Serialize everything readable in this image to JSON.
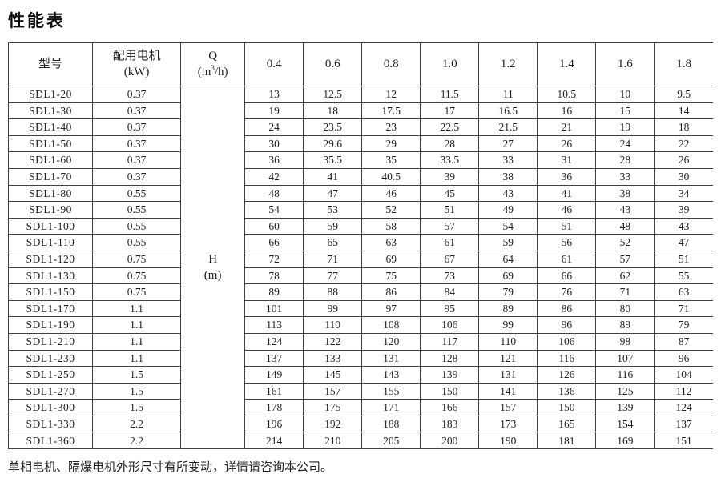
{
  "title": "性能表",
  "table": {
    "col_model": "型号",
    "col_motor_line1": "配用电机",
    "col_motor_line2": "(kW)",
    "col_q_line1": "Q",
    "q_unit": {
      "pre": "(m",
      "sup": "3",
      "post": "/h)"
    },
    "h_label_line1": "H",
    "h_label_line2": "(m)",
    "flow_headers": [
      "0.4",
      "0.6",
      "0.8",
      "1.0",
      "1.2",
      "1.4",
      "1.6",
      "1.8"
    ],
    "rows": [
      {
        "model": "SDL1-20",
        "power": "0.37",
        "h": [
          "13",
          "12.5",
          "12",
          "11.5",
          "11",
          "10.5",
          "10",
          "9.5"
        ]
      },
      {
        "model": "SDL1-30",
        "power": "0.37",
        "h": [
          "19",
          "18",
          "17.5",
          "17",
          "16.5",
          "16",
          "15",
          "14"
        ]
      },
      {
        "model": "SDL1-40",
        "power": "0.37",
        "h": [
          "24",
          "23.5",
          "23",
          "22.5",
          "21.5",
          "21",
          "19",
          "18"
        ]
      },
      {
        "model": "SDL1-50",
        "power": "0.37",
        "h": [
          "30",
          "29.6",
          "29",
          "28",
          "27",
          "26",
          "24",
          "22"
        ]
      },
      {
        "model": "SDL1-60",
        "power": "0.37",
        "h": [
          "36",
          "35.5",
          "35",
          "33.5",
          "33",
          "31",
          "28",
          "26"
        ]
      },
      {
        "model": "SDL1-70",
        "power": "0.37",
        "h": [
          "42",
          "41",
          "40.5",
          "39",
          "38",
          "36",
          "33",
          "30"
        ]
      },
      {
        "model": "SDL1-80",
        "power": "0.55",
        "h": [
          "48",
          "47",
          "46",
          "45",
          "43",
          "41",
          "38",
          "34"
        ]
      },
      {
        "model": "SDL1-90",
        "power": "0.55",
        "h": [
          "54",
          "53",
          "52",
          "51",
          "49",
          "46",
          "43",
          "39"
        ]
      },
      {
        "model": "SDL1-100",
        "power": "0.55",
        "h": [
          "60",
          "59",
          "58",
          "57",
          "54",
          "51",
          "48",
          "43"
        ]
      },
      {
        "model": "SDL1-110",
        "power": "0.55",
        "h": [
          "66",
          "65",
          "63",
          "61",
          "59",
          "56",
          "52",
          "47"
        ]
      },
      {
        "model": "SDL1-120",
        "power": "0.75",
        "h": [
          "72",
          "71",
          "69",
          "67",
          "64",
          "61",
          "57",
          "51"
        ]
      },
      {
        "model": "SDL1-130",
        "power": "0.75",
        "h": [
          "78",
          "77",
          "75",
          "73",
          "69",
          "66",
          "62",
          "55"
        ]
      },
      {
        "model": "SDL1-150",
        "power": "0.75",
        "h": [
          "89",
          "88",
          "86",
          "84",
          "79",
          "76",
          "71",
          "63"
        ]
      },
      {
        "model": "SDL1-170",
        "power": "1.1",
        "h": [
          "101",
          "99",
          "97",
          "95",
          "89",
          "86",
          "80",
          "71"
        ]
      },
      {
        "model": "SDL1-190",
        "power": "1.1",
        "h": [
          "113",
          "110",
          "108",
          "106",
          "99",
          "96",
          "89",
          "79"
        ]
      },
      {
        "model": "SDL1-210",
        "power": "1.1",
        "h": [
          "124",
          "122",
          "120",
          "117",
          "110",
          "106",
          "98",
          "87"
        ]
      },
      {
        "model": "SDL1-230",
        "power": "1.1",
        "h": [
          "137",
          "133",
          "131",
          "128",
          "121",
          "116",
          "107",
          "96"
        ]
      },
      {
        "model": "SDL1-250",
        "power": "1.5",
        "h": [
          "149",
          "145",
          "143",
          "139",
          "131",
          "126",
          "116",
          "104"
        ]
      },
      {
        "model": "SDL1-270",
        "power": "1.5",
        "h": [
          "161",
          "157",
          "155",
          "150",
          "141",
          "136",
          "125",
          "112"
        ]
      },
      {
        "model": "SDL1-300",
        "power": "1.5",
        "h": [
          "178",
          "175",
          "171",
          "166",
          "157",
          "150",
          "139",
          "124"
        ]
      },
      {
        "model": "SDL1-330",
        "power": "2.2",
        "h": [
          "196",
          "192",
          "188",
          "183",
          "173",
          "165",
          "154",
          "137"
        ]
      },
      {
        "model": "SDL1-360",
        "power": "2.2",
        "h": [
          "214",
          "210",
          "205",
          "200",
          "190",
          "181",
          "169",
          "151"
        ]
      }
    ]
  },
  "footer_note": "单相电机、隔爆电机外形尺寸有所变动，详情请咨询本公司。"
}
